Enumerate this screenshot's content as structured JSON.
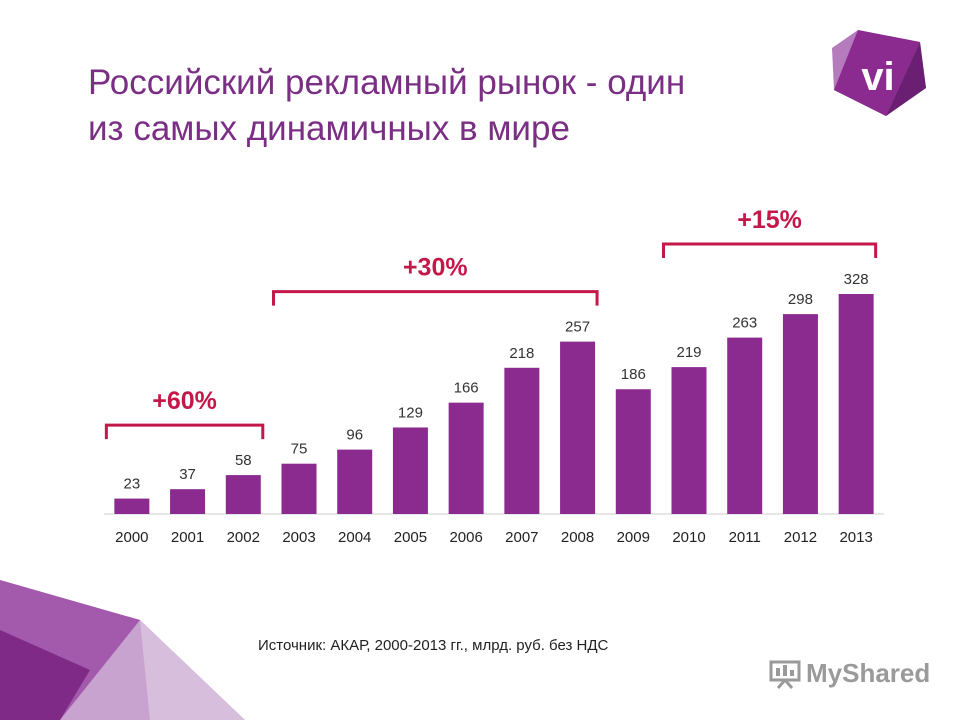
{
  "slide": {
    "title_line1": "Российский рекламный рынок - один",
    "title_line2": "из самых динамичных в мире",
    "logo_text": "vi",
    "source": "Источник: АКАР, 2000-2013 гг., млрд. руб. без НДС",
    "watermark": "MyShared",
    "colors": {
      "accent": "#7a2e84",
      "bar": "#8b2a8f",
      "bracket": "#c4184a"
    }
  },
  "chart_data": {
    "type": "bar",
    "categories": [
      "2000",
      "2001",
      "2002",
      "2003",
      "2004",
      "2005",
      "2006",
      "2007",
      "2008",
      "2009",
      "2010",
      "2011",
      "2012",
      "2013"
    ],
    "values": [
      23,
      37,
      58,
      75,
      96,
      129,
      166,
      218,
      257,
      186,
      219,
      263,
      298,
      328
    ],
    "ylim": [
      0,
      328
    ],
    "grid": false,
    "annotations": [
      {
        "label": "+60%",
        "from": "2000",
        "to": "2002"
      },
      {
        "label": "+30%",
        "from": "2003",
        "to": "2008"
      },
      {
        "label": "+15%",
        "from": "2010",
        "to": "2013"
      }
    ]
  }
}
